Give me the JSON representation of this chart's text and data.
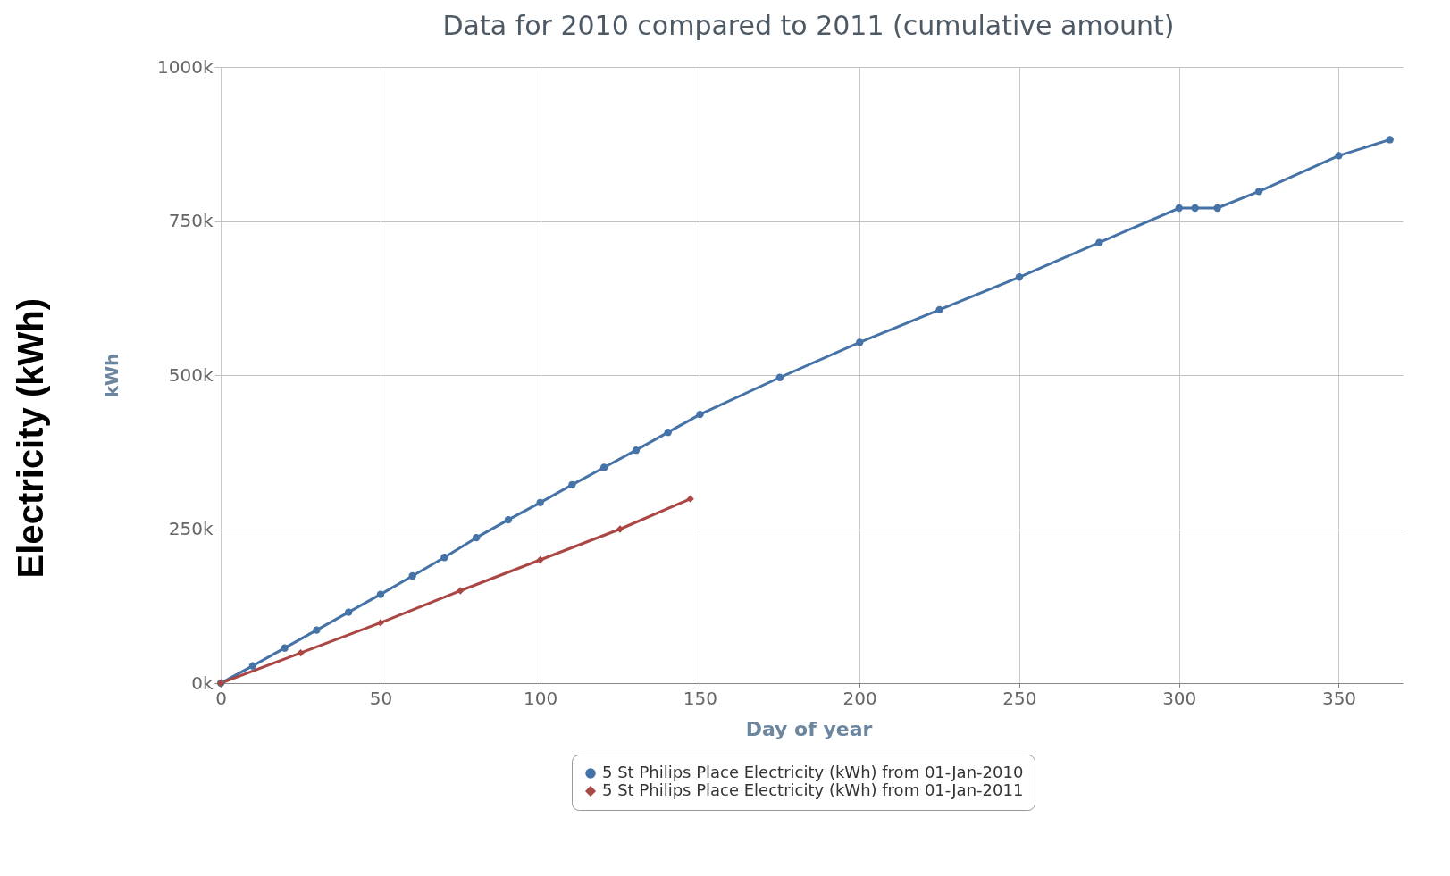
{
  "chart_data": {
    "type": "line",
    "title": "Data for 2010 compared to 2011 (cumulative amount)",
    "xlabel": "Day of year",
    "ylabel": "kWh",
    "annotations": [
      "Electricity (kWh)"
    ],
    "xlim": [
      -2,
      370
    ],
    "xticks": [
      0,
      50,
      100,
      150,
      200,
      250,
      300,
      350
    ],
    "ylim": [
      0,
      1000000
    ],
    "yticks": [
      {
        "value": 0,
        "label": "0k"
      },
      {
        "value": 250000,
        "label": "250k"
      },
      {
        "value": 500000,
        "label": "500k"
      },
      {
        "value": 750000,
        "label": "750k"
      },
      {
        "value": 1000000,
        "label": "1000k"
      }
    ],
    "grid": true,
    "legend": "bottom",
    "line_style": "solid",
    "series": [
      {
        "name": "5 St Philips Place Electricity (kWh) from 01-Jan-2010",
        "color": "#4572a7",
        "marker": "circle",
        "x": [
          0,
          10,
          20,
          30,
          40,
          50,
          60,
          70,
          80,
          90,
          100,
          110,
          120,
          130,
          140,
          150,
          175,
          200,
          225,
          250,
          275,
          300,
          305,
          312,
          325,
          350,
          366
        ],
        "values": [
          0,
          28000,
          57000,
          86000,
          115000,
          144000,
          174000,
          204000,
          236000,
          265000,
          293000,
          322000,
          350000,
          378000,
          407000,
          436000,
          496000,
          553000,
          606000,
          659000,
          715000,
          771000,
          771000,
          771000,
          798000,
          856000,
          882000
        ]
      },
      {
        "name": "5 St Philips Place Electricity (kWh) from 01-Jan-2011",
        "color": "#aa4643",
        "marker": "diamond",
        "x": [
          0,
          25,
          50,
          75,
          100,
          125,
          147
        ],
        "values": [
          0,
          49000,
          98000,
          150000,
          200000,
          250000,
          299000
        ]
      }
    ]
  }
}
